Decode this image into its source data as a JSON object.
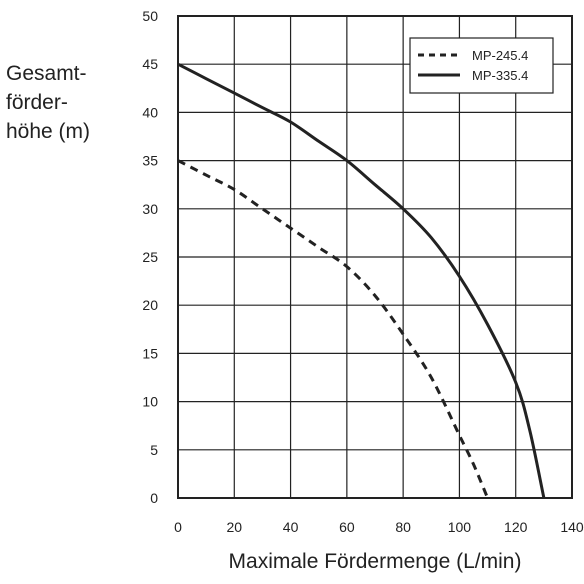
{
  "chart_data": {
    "type": "line",
    "title": "",
    "ylabel_lines": [
      "Gesamt-",
      "förder-",
      "höhe (m)"
    ],
    "xlabel": "Maximale Fördermenge (L/min)",
    "xlim": [
      0,
      140
    ],
    "ylim": [
      0,
      50
    ],
    "xticks": [
      "0",
      "20",
      "40",
      "60",
      "80",
      "100",
      "120",
      "140"
    ],
    "yticks": [
      "0",
      "5",
      "10",
      "15",
      "20",
      "25",
      "30",
      "35",
      "40",
      "45",
      "50"
    ],
    "grid": true,
    "legend_position": "top-right",
    "series": [
      {
        "name": "MP-245.4",
        "style": "dashed",
        "x": [
          0,
          10,
          20,
          30,
          40,
          50,
          60,
          70,
          80,
          90,
          100,
          105,
          110
        ],
        "y": [
          35,
          33.5,
          32,
          30,
          28,
          26,
          24,
          21,
          17,
          12.5,
          6.5,
          3.5,
          0
        ]
      },
      {
        "name": "MP-335.4",
        "style": "solid",
        "x": [
          0,
          10,
          20,
          30,
          40,
          50,
          60,
          70,
          80,
          90,
          100,
          110,
          120,
          125,
          130
        ],
        "y": [
          45,
          43.5,
          42,
          40.5,
          39,
          37,
          35,
          32.5,
          30,
          27,
          23,
          18,
          12,
          7,
          0
        ]
      }
    ]
  }
}
